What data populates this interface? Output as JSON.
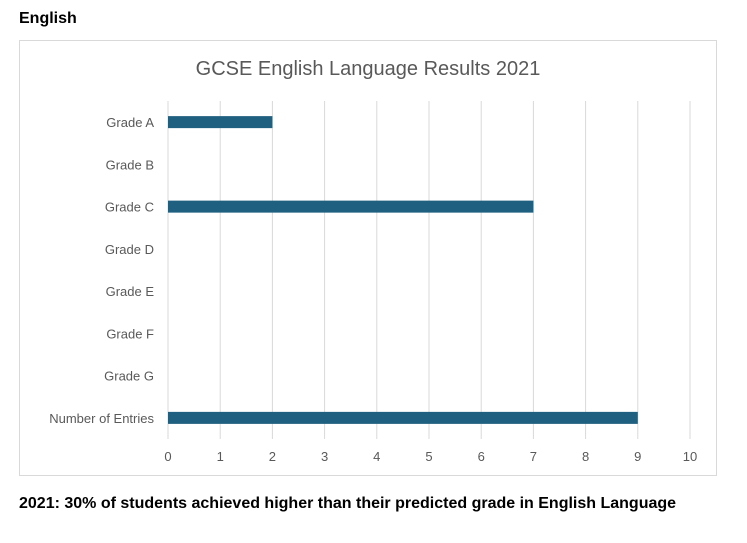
{
  "page": {
    "section_title": "English",
    "footer_note": "2021: 30% of students achieved higher than their predicted grade in English Language"
  },
  "colors": {
    "bar": "#1f5f7f",
    "grid": "#d9d9d9",
    "tick_text": "#595959",
    "title_text": "#595959"
  },
  "chart_data": {
    "type": "bar",
    "orientation": "horizontal",
    "title": "GCSE English Language Results 2021",
    "categories": [
      "Grade A",
      "Grade B",
      "Grade C",
      "Grade D",
      "Grade E",
      "Grade F",
      "Grade G",
      "Number of Entries"
    ],
    "values": [
      2,
      0,
      7,
      0,
      0,
      0,
      0,
      9
    ],
    "xlabel": "",
    "ylabel": "",
    "xlim": [
      0,
      10
    ],
    "xticks": [
      0,
      1,
      2,
      3,
      4,
      5,
      6,
      7,
      8,
      9,
      10
    ],
    "grid": true,
    "legend": "none"
  }
}
